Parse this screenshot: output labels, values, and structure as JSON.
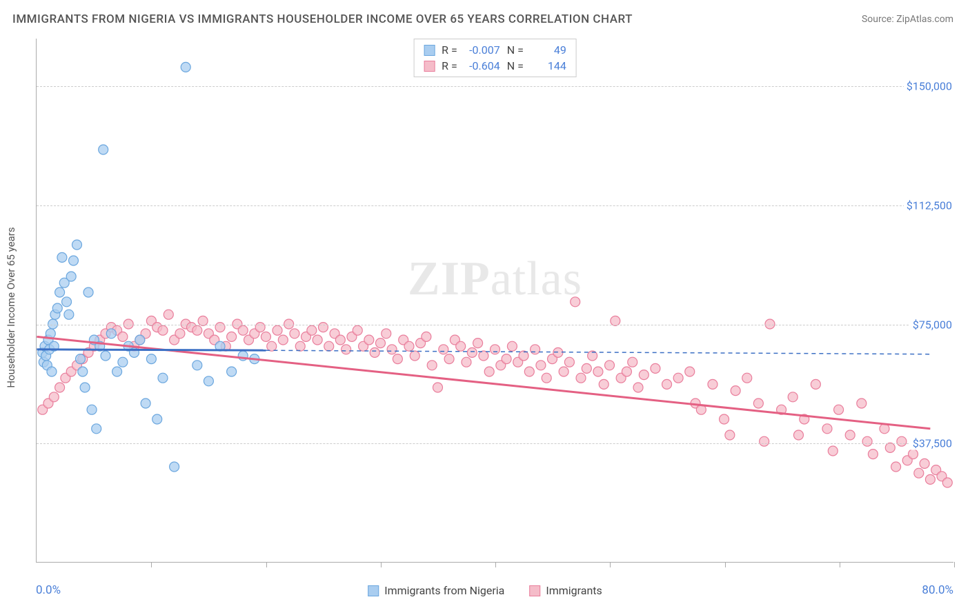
{
  "title": "IMMIGRANTS FROM NIGERIA VS IMMIGRANTS HOUSEHOLDER INCOME OVER 65 YEARS CORRELATION CHART",
  "source": "Source: ZipAtlas.com",
  "watermark_bold": "ZIP",
  "watermark_rest": "atlas",
  "y_axis_title": "Householder Income Over 65 years",
  "x_label_min": "0.0%",
  "x_label_max": "80.0%",
  "xlim": [
    0,
    80
  ],
  "ylim": [
    0,
    165000
  ],
  "x_ticks": [
    0,
    10,
    20,
    30,
    40,
    50,
    60,
    70,
    80
  ],
  "y_ticks": [
    {
      "v": 37500,
      "label": "$37,500"
    },
    {
      "v": 75000,
      "label": "$75,000"
    },
    {
      "v": 112500,
      "label": "$112,500"
    },
    {
      "v": 150000,
      "label": "$150,000"
    }
  ],
  "series": [
    {
      "name": "Immigrants from Nigeria",
      "label": "Immigrants from Nigeria",
      "fill": "#a9cdf0",
      "stroke": "#6aa6de",
      "line_color": "#3b6fc4",
      "R": "-0.007",
      "N": "49",
      "marker_r": 7,
      "trend": {
        "x1": 0,
        "y1": 67000,
        "x2": 20,
        "y2": 66700,
        "dash_to_x": 78,
        "dash_to_y": 65500
      },
      "points": [
        [
          0.5,
          66000
        ],
        [
          0.6,
          63000
        ],
        [
          0.7,
          68000
        ],
        [
          0.8,
          65000
        ],
        [
          0.9,
          62000
        ],
        [
          1.0,
          70000
        ],
        [
          1.1,
          67000
        ],
        [
          1.2,
          72000
        ],
        [
          1.3,
          60000
        ],
        [
          1.4,
          75000
        ],
        [
          1.5,
          68000
        ],
        [
          1.6,
          78000
        ],
        [
          1.8,
          80000
        ],
        [
          2.0,
          85000
        ],
        [
          2.2,
          96000
        ],
        [
          2.4,
          88000
        ],
        [
          2.6,
          82000
        ],
        [
          2.8,
          78000
        ],
        [
          3.0,
          90000
        ],
        [
          3.2,
          95000
        ],
        [
          3.5,
          100000
        ],
        [
          3.8,
          64000
        ],
        [
          4.0,
          60000
        ],
        [
          4.2,
          55000
        ],
        [
          4.5,
          85000
        ],
        [
          4.8,
          48000
        ],
        [
          5.0,
          70000
        ],
        [
          5.2,
          42000
        ],
        [
          5.5,
          68000
        ],
        [
          5.8,
          130000
        ],
        [
          6.0,
          65000
        ],
        [
          6.5,
          72000
        ],
        [
          7.0,
          60000
        ],
        [
          7.5,
          63000
        ],
        [
          8.0,
          68000
        ],
        [
          8.5,
          66000
        ],
        [
          9.0,
          70000
        ],
        [
          9.5,
          50000
        ],
        [
          10.0,
          64000
        ],
        [
          10.5,
          45000
        ],
        [
          11.0,
          58000
        ],
        [
          12.0,
          30000
        ],
        [
          13.0,
          156000
        ],
        [
          14.0,
          62000
        ],
        [
          15.0,
          57000
        ],
        [
          16.0,
          68000
        ],
        [
          17.0,
          60000
        ],
        [
          18.0,
          65000
        ],
        [
          19.0,
          64000
        ]
      ]
    },
    {
      "name": "Immigrants",
      "label": "Immigrants",
      "fill": "#f5bcc9",
      "stroke": "#e97d9b",
      "line_color": "#e46083",
      "R": "-0.604",
      "N": "144",
      "marker_r": 7,
      "trend": {
        "x1": 0,
        "y1": 71000,
        "x2": 78,
        "y2": 42000
      },
      "points": [
        [
          0.5,
          48000
        ],
        [
          1.0,
          50000
        ],
        [
          1.5,
          52000
        ],
        [
          2.0,
          55000
        ],
        [
          2.5,
          58000
        ],
        [
          3.0,
          60000
        ],
        [
          3.5,
          62000
        ],
        [
          4.0,
          64000
        ],
        [
          4.5,
          66000
        ],
        [
          5.0,
          68000
        ],
        [
          5.5,
          70000
        ],
        [
          6.0,
          72000
        ],
        [
          6.5,
          74000
        ],
        [
          7.0,
          73000
        ],
        [
          7.5,
          71000
        ],
        [
          8.0,
          75000
        ],
        [
          8.5,
          68000
        ],
        [
          9.0,
          70000
        ],
        [
          9.5,
          72000
        ],
        [
          10.0,
          76000
        ],
        [
          10.5,
          74000
        ],
        [
          11.0,
          73000
        ],
        [
          11.5,
          78000
        ],
        [
          12.0,
          70000
        ],
        [
          12.5,
          72000
        ],
        [
          13.0,
          75000
        ],
        [
          13.5,
          74000
        ],
        [
          14.0,
          73000
        ],
        [
          14.5,
          76000
        ],
        [
          15.0,
          72000
        ],
        [
          15.5,
          70000
        ],
        [
          16.0,
          74000
        ],
        [
          16.5,
          68000
        ],
        [
          17.0,
          71000
        ],
        [
          17.5,
          75000
        ],
        [
          18.0,
          73000
        ],
        [
          18.5,
          70000
        ],
        [
          19.0,
          72000
        ],
        [
          19.5,
          74000
        ],
        [
          20.0,
          71000
        ],
        [
          20.5,
          68000
        ],
        [
          21.0,
          73000
        ],
        [
          21.5,
          70000
        ],
        [
          22.0,
          75000
        ],
        [
          22.5,
          72000
        ],
        [
          23.0,
          68000
        ],
        [
          23.5,
          71000
        ],
        [
          24.0,
          73000
        ],
        [
          24.5,
          70000
        ],
        [
          25.0,
          74000
        ],
        [
          25.5,
          68000
        ],
        [
          26.0,
          72000
        ],
        [
          26.5,
          70000
        ],
        [
          27.0,
          67000
        ],
        [
          27.5,
          71000
        ],
        [
          28.0,
          73000
        ],
        [
          28.5,
          68000
        ],
        [
          29.0,
          70000
        ],
        [
          29.5,
          66000
        ],
        [
          30.0,
          69000
        ],
        [
          30.5,
          72000
        ],
        [
          31.0,
          67000
        ],
        [
          31.5,
          64000
        ],
        [
          32.0,
          70000
        ],
        [
          32.5,
          68000
        ],
        [
          33.0,
          65000
        ],
        [
          33.5,
          69000
        ],
        [
          34.0,
          71000
        ],
        [
          34.5,
          62000
        ],
        [
          35.0,
          55000
        ],
        [
          35.5,
          67000
        ],
        [
          36.0,
          64000
        ],
        [
          36.5,
          70000
        ],
        [
          37.0,
          68000
        ],
        [
          37.5,
          63000
        ],
        [
          38.0,
          66000
        ],
        [
          38.5,
          69000
        ],
        [
          39.0,
          65000
        ],
        [
          39.5,
          60000
        ],
        [
          40.0,
          67000
        ],
        [
          40.5,
          62000
        ],
        [
          41.0,
          64000
        ],
        [
          41.5,
          68000
        ],
        [
          42.0,
          63000
        ],
        [
          42.5,
          65000
        ],
        [
          43.0,
          60000
        ],
        [
          43.5,
          67000
        ],
        [
          44.0,
          62000
        ],
        [
          44.5,
          58000
        ],
        [
          45.0,
          64000
        ],
        [
          45.5,
          66000
        ],
        [
          46.0,
          60000
        ],
        [
          46.5,
          63000
        ],
        [
          47.0,
          82000
        ],
        [
          47.5,
          58000
        ],
        [
          48.0,
          61000
        ],
        [
          48.5,
          65000
        ],
        [
          49.0,
          60000
        ],
        [
          49.5,
          56000
        ],
        [
          50.0,
          62000
        ],
        [
          50.5,
          76000
        ],
        [
          51.0,
          58000
        ],
        [
          51.5,
          60000
        ],
        [
          52.0,
          63000
        ],
        [
          52.5,
          55000
        ],
        [
          53.0,
          59000
        ],
        [
          54.0,
          61000
        ],
        [
          55.0,
          56000
        ],
        [
          56.0,
          58000
        ],
        [
          57.0,
          60000
        ],
        [
          57.5,
          50000
        ],
        [
          58.0,
          48000
        ],
        [
          59.0,
          56000
        ],
        [
          60.0,
          45000
        ],
        [
          60.5,
          40000
        ],
        [
          61.0,
          54000
        ],
        [
          62.0,
          58000
        ],
        [
          63.0,
          50000
        ],
        [
          63.5,
          38000
        ],
        [
          64.0,
          75000
        ],
        [
          65.0,
          48000
        ],
        [
          66.0,
          52000
        ],
        [
          66.5,
          40000
        ],
        [
          67.0,
          45000
        ],
        [
          68.0,
          56000
        ],
        [
          69.0,
          42000
        ],
        [
          69.5,
          35000
        ],
        [
          70.0,
          48000
        ],
        [
          71.0,
          40000
        ],
        [
          72.0,
          50000
        ],
        [
          72.5,
          38000
        ],
        [
          73.0,
          34000
        ],
        [
          74.0,
          42000
        ],
        [
          74.5,
          36000
        ],
        [
          75.0,
          30000
        ],
        [
          75.5,
          38000
        ],
        [
          76.0,
          32000
        ],
        [
          76.5,
          34000
        ],
        [
          77.0,
          28000
        ],
        [
          77.5,
          31000
        ],
        [
          78.0,
          26000
        ],
        [
          78.5,
          29000
        ],
        [
          79.0,
          27000
        ],
        [
          79.5,
          25000
        ]
      ]
    }
  ],
  "legend_top_label_R": "R =",
  "legend_top_label_N": "N =",
  "background_color": "#ffffff"
}
